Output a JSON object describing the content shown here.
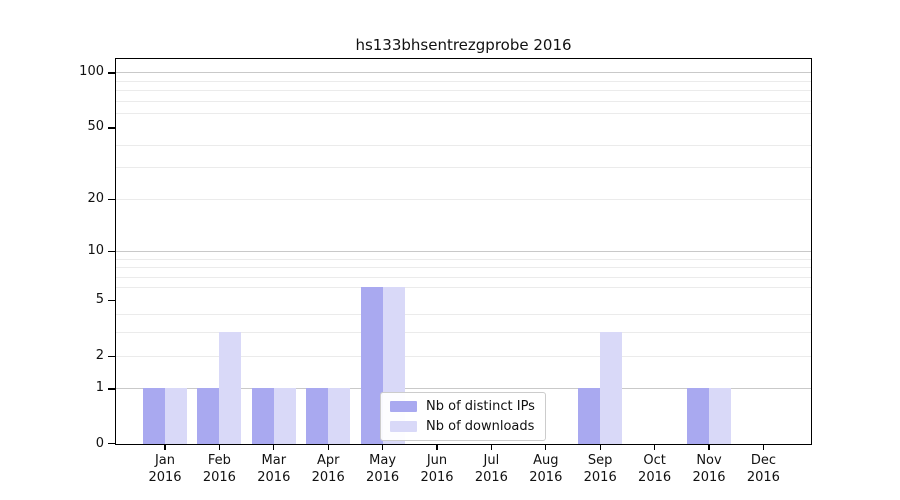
{
  "chart_data": {
    "type": "bar",
    "title": "hs133bhsentrezgprobe 2016",
    "categories": [
      "Jan",
      "Feb",
      "Mar",
      "Apr",
      "May",
      "Jun",
      "Jul",
      "Aug",
      "Sep",
      "Oct",
      "Nov",
      "Dec"
    ],
    "category_year": "2016",
    "series": [
      {
        "name": "Nb of distinct IPs",
        "color": "#a9a9f0",
        "values": [
          1,
          1,
          1,
          1,
          6,
          0,
          0,
          0,
          1,
          0,
          1,
          0
        ]
      },
      {
        "name": "Nb of downloads",
        "color": "#d9d9f8",
        "values": [
          1,
          3,
          1,
          1,
          6,
          0,
          0,
          0,
          3,
          0,
          1,
          0
        ]
      }
    ],
    "xlabel": "",
    "ylabel": "",
    "y_axis": {
      "scale": "log1p",
      "ylim": [
        0,
        117
      ],
      "tick_labels": [
        "100",
        "50",
        "20",
        "10",
        "5",
        "2",
        "1",
        "0"
      ],
      "tick_values": [
        100,
        50,
        20,
        10,
        5,
        2,
        1,
        0
      ],
      "major_grid_values": [
        1,
        10,
        100
      ],
      "minor_grid_values": [
        2,
        3,
        4,
        6,
        7,
        8,
        9,
        20,
        30,
        40,
        60,
        70,
        80,
        90
      ]
    },
    "grid": true,
    "legend_position": "lower center"
  },
  "style": {
    "bar_color_distinct_ips": "#a9a9f0",
    "bar_color_downloads": "#d9d9f8",
    "major_grid_color": "#c9c9c9",
    "minor_grid_color": "#ebebeb",
    "axis_color": "#000000",
    "text_color": "#111111",
    "background_color": "#ffffff"
  }
}
